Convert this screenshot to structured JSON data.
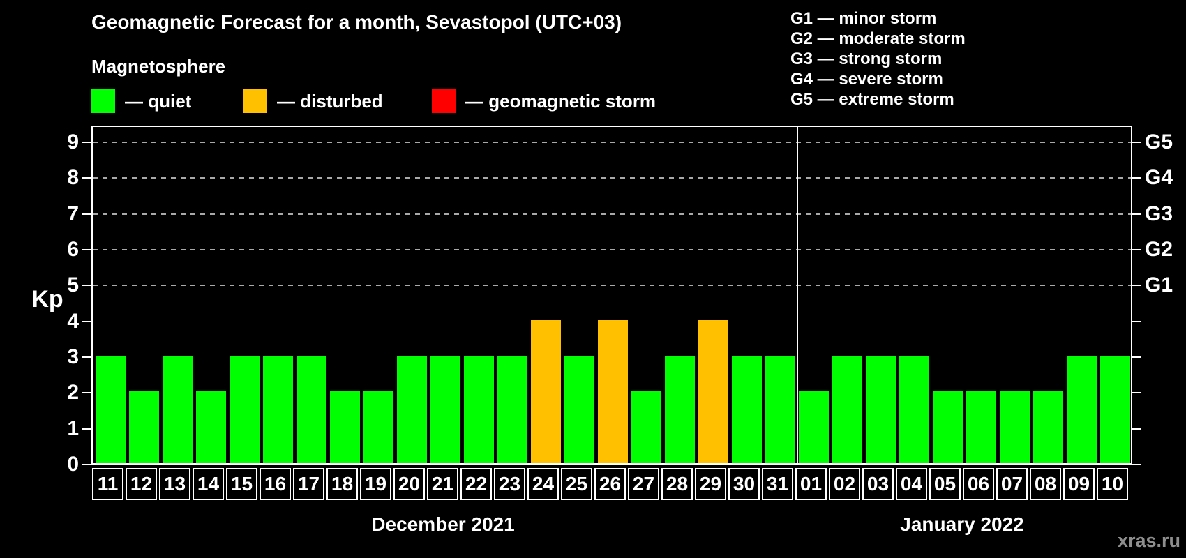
{
  "title": "Geomagnetic Forecast for a month, Sevastopol (UTC+03)",
  "subtitle": "Magnetosphere",
  "legend": {
    "items": [
      {
        "name": "quiet",
        "label": "— quiet",
        "color": "#00ff00"
      },
      {
        "name": "disturbed",
        "label": "— disturbed",
        "color": "#ffc000"
      },
      {
        "name": "storm",
        "label": "— geomagnetic storm",
        "color": "#ff0000"
      }
    ]
  },
  "g_legend": [
    "G1 — minor storm",
    "G2 — moderate storm",
    "G3 — strong storm",
    "G4 — severe storm",
    "G5 — extreme storm"
  ],
  "watermark": "xras.ru",
  "chart_data": {
    "type": "bar",
    "title": "Geomagnetic Forecast for a month, Sevastopol (UTC+03)",
    "ylabel": "Kp",
    "ylim": [
      0,
      9
    ],
    "y_ticks": [
      0,
      1,
      2,
      3,
      4,
      5,
      6,
      7,
      8,
      9
    ],
    "gridlines_at": [
      5,
      6,
      7,
      8,
      9
    ],
    "grid": "dashed",
    "right_axis": [
      {
        "kp": 5,
        "label": "G1"
      },
      {
        "kp": 6,
        "label": "G2"
      },
      {
        "kp": 7,
        "label": "G3"
      },
      {
        "kp": 8,
        "label": "G4"
      },
      {
        "kp": 9,
        "label": "G5"
      }
    ],
    "state_colors": {
      "quiet": "#00ff00",
      "disturbed": "#ffc000",
      "storm": "#ff0000"
    },
    "groups": [
      {
        "month_label": "December 2021",
        "days": [
          "11",
          "12",
          "13",
          "14",
          "15",
          "16",
          "17",
          "18",
          "19",
          "20",
          "21",
          "22",
          "23",
          "24",
          "25",
          "26",
          "27",
          "28",
          "29",
          "30",
          "31"
        ],
        "values": [
          3,
          2,
          3,
          2,
          3,
          3,
          3,
          2,
          2,
          3,
          3,
          3,
          3,
          4,
          3,
          4,
          2,
          3,
          4,
          3,
          3
        ],
        "states": [
          "quiet",
          "quiet",
          "quiet",
          "quiet",
          "quiet",
          "quiet",
          "quiet",
          "quiet",
          "quiet",
          "quiet",
          "quiet",
          "quiet",
          "quiet",
          "disturbed",
          "quiet",
          "disturbed",
          "quiet",
          "quiet",
          "disturbed",
          "quiet",
          "quiet"
        ]
      },
      {
        "month_label": "January 2022",
        "days": [
          "01",
          "02",
          "03",
          "04",
          "05",
          "06",
          "07",
          "08",
          "09",
          "10"
        ],
        "values": [
          2,
          3,
          3,
          3,
          2,
          2,
          2,
          2,
          3,
          3
        ],
        "states": [
          "quiet",
          "quiet",
          "quiet",
          "quiet",
          "quiet",
          "quiet",
          "quiet",
          "quiet",
          "quiet",
          "quiet"
        ]
      }
    ]
  }
}
